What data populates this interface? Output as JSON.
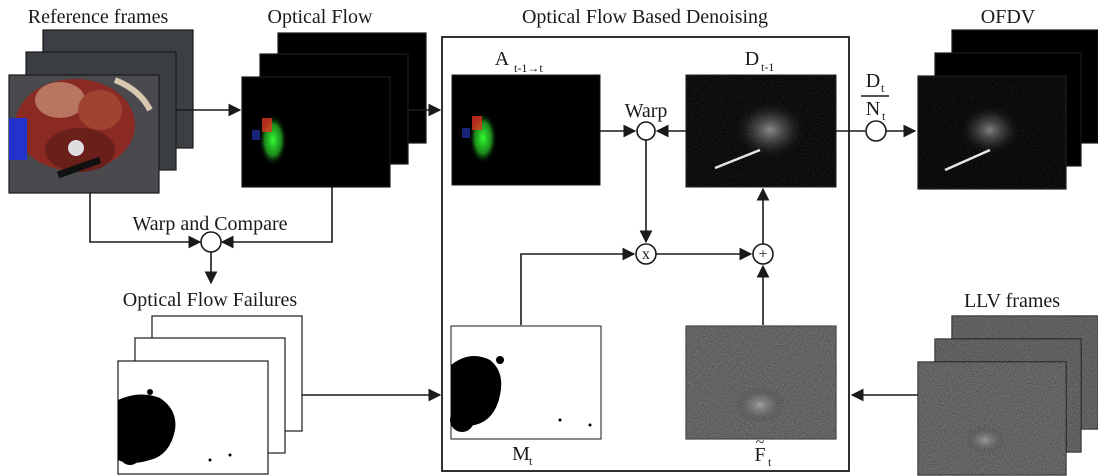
{
  "labels": {
    "reference_frames": "Reference frames",
    "optical_flow": "Optical Flow",
    "optical_flow_denoising": "Optical Flow Based Denoising",
    "ofdv": "OFDV",
    "warp_and_compare": "Warp and Compare",
    "optical_flow_failures": "Optical Flow Failures",
    "llv_frames": "LLV frames",
    "warp": "Warp",
    "a_main": "A",
    "a_sub": "t-1→t",
    "d_main": "D",
    "d_sub": "t-1",
    "m_main": "M",
    "m_sub": "t",
    "f_main": "F",
    "f_tilde": "~",
    "f_sub": "t",
    "frac_num_main": "D",
    "frac_num_sub": "t",
    "frac_den_main": "N",
    "frac_den_sub": "t",
    "multiply_symbol": "x",
    "add_symbol": "+"
  },
  "colors": {
    "ink": "#1a1a1a",
    "dark_frame": "#000000",
    "noise_frame": "#4a4a4a",
    "flow_green": "#33dd33",
    "flow_red": "#dd3322",
    "surgical_red": "#8a2a22",
    "instrument_blue": "#2233cc"
  }
}
